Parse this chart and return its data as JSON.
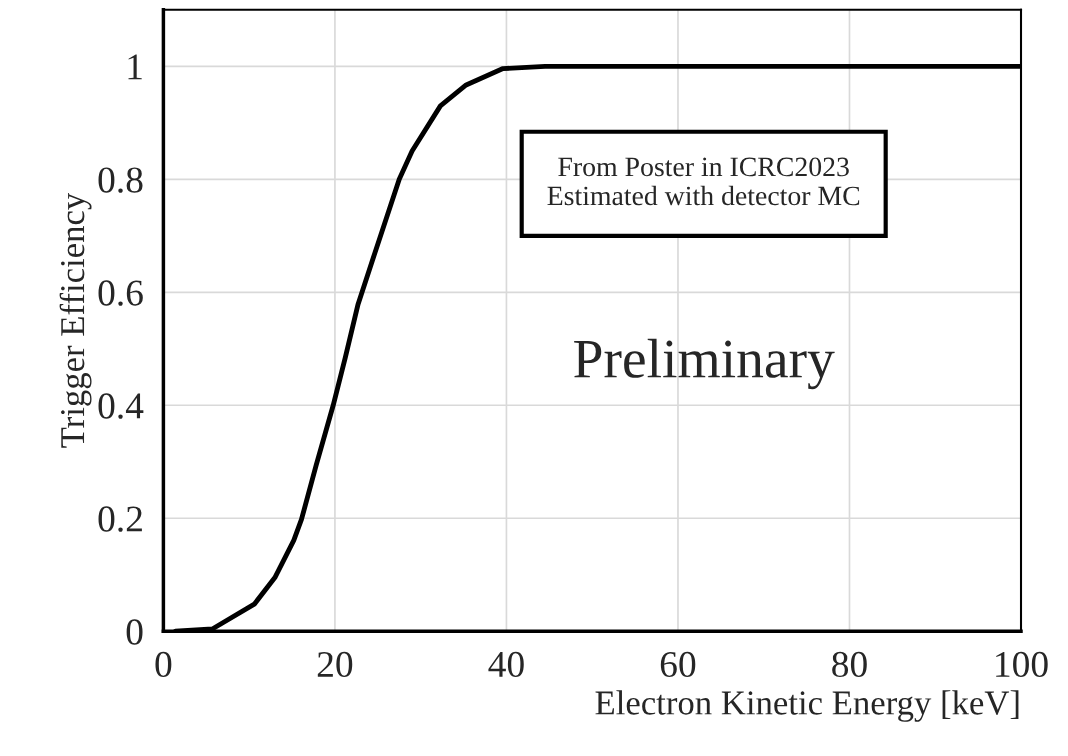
{
  "chart_data": {
    "type": "line",
    "xlabel": "Electron Kinetic Energy [keV]",
    "ylabel": "Trigger Efficiency",
    "annotations": [
      "From Poster in ICRC2023\nEstimated with detector MC",
      "Preliminary"
    ],
    "series": [
      {
        "color": "#000000",
        "x": [
          1.4,
          5.7,
          10.6,
          13.0,
          15.2,
          16.1,
          17.8,
          19.8,
          21.2,
          22.7,
          24.6,
          27.5,
          29.0,
          32.3,
          35.3,
          39.6,
          44.5,
          100
        ],
        "values": [
          0,
          0.004,
          0.048,
          0.095,
          0.161,
          0.198,
          0.293,
          0.4,
          0.484,
          0.579,
          0.667,
          0.8,
          0.85,
          0.93,
          0.967,
          0.996,
          1.0,
          1.0
        ]
      }
    ],
    "xlim": [
      0,
      100
    ],
    "ylim": [
      0,
      1.1
    ],
    "xticks": [
      0,
      20,
      40,
      60,
      80,
      100
    ],
    "yticks": [
      0,
      0.2,
      0.4,
      0.6,
      0.8,
      1
    ],
    "grid": true,
    "marker": "none",
    "line_style": "solid"
  }
}
